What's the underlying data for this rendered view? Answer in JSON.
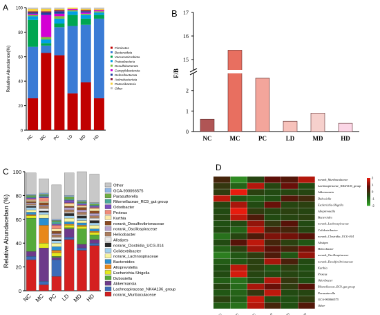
{
  "panels": [
    {
      "letter": "A",
      "chart_data": {
        "type": "bar",
        "stacked": true,
        "categories": [
          "NC",
          "MC",
          "PC",
          "LD",
          "MD",
          "HD"
        ],
        "ylabel": "Relative Abundance(%)",
        "ylim": [
          0,
          100
        ],
        "yticks": [
          0,
          20,
          40,
          60,
          80,
          100
        ],
        "legend_position": "right",
        "series": [
          {
            "name": "Firmicutes",
            "color": "#c00000",
            "values": [
              26,
              63,
              61,
              30,
              39,
              26
            ]
          },
          {
            "name": "Bacteroidota",
            "color": "#3a7bd5",
            "values": [
              42,
              6,
              23,
              55,
              47,
              65
            ]
          },
          {
            "name": "Verrucomicrobiota",
            "color": "#00a651",
            "values": [
              22,
              2,
              3,
              9,
              5,
              3
            ]
          },
          {
            "name": "Proteobacteria",
            "color": "#00a0e3",
            "values": [
              3,
              3,
              4,
              3,
              3,
              2
            ]
          },
          {
            "name": "Desulfobacterota",
            "color": "#7fbf3f",
            "values": [
              1,
              2,
              2,
              1,
              1,
              1
            ]
          },
          {
            "name": "Campylobacterota",
            "color": "#d400d4",
            "values": [
              1,
              18,
              2,
              1,
              1,
              1
            ]
          },
          {
            "name": "Deferribacterota",
            "color": "#1f3fa0",
            "values": [
              1,
              2,
              2,
              0,
              1,
              0
            ]
          },
          {
            "name": "Actinobacteriota",
            "color": "#8b1e3f",
            "values": [
              1,
              1,
              1,
              0,
              1,
              0
            ]
          },
          {
            "name": "Patescibacteria",
            "color": "#f4d03f",
            "values": [
              2,
              2,
              1,
              1,
              1,
              1
            ]
          },
          {
            "name": "Other",
            "color": "#bfbfbf",
            "values": [
              1,
              1,
              1,
              0,
              1,
              1
            ]
          }
        ]
      }
    },
    {
      "letter": "B",
      "chart_data": {
        "type": "bar",
        "categories": [
          "NC",
          "MC",
          "PC",
          "LD",
          "MD",
          "HD"
        ],
        "values": [
          0.6,
          15.4,
          2.6,
          0.5,
          0.9,
          0.4
        ],
        "colors": [
          "#b05555",
          "#e86f60",
          "#f3a59b",
          "#f7c2bb",
          "#f6d0cc",
          "#fbd6e6"
        ],
        "ylabel": "F/B",
        "yticks_lower": [
          0,
          1,
          2
        ],
        "yticks_upper": [
          15,
          16,
          17
        ],
        "axis_break": [
          2.7,
          14.5
        ]
      }
    },
    {
      "letter": "C",
      "chart_data": {
        "type": "bar",
        "stacked": true,
        "categories": [
          "NC",
          "MC",
          "PC",
          "LD",
          "MD",
          "HD"
        ],
        "ylabel": "Relative Abundaceban (%)",
        "ylim": [
          0,
          100
        ],
        "yticks": [
          0,
          20,
          40,
          60,
          80,
          100
        ],
        "legend_position": "right",
        "series": [
          {
            "name": "norank_Muribaculaceae",
            "color": "#d42020",
            "values": [
              26,
              5,
              12,
              43,
              34,
              38
            ]
          },
          {
            "name": "Lachnospiraceae_NK4A136_group",
            "color": "#3b6cb8",
            "values": [
              3,
              3,
              14,
              2,
              2,
              2
            ]
          },
          {
            "name": "Akkermansia",
            "color": "#6e3a8a",
            "values": [
              4,
              28,
              2,
              7,
              3,
              3
            ]
          },
          {
            "name": "Dubosiella",
            "color": "#55aa3a",
            "values": [
              28,
              0,
              1,
              1,
              13,
              4
            ]
          },
          {
            "name": "Escherichia-Shigella",
            "color": "#e3e81e",
            "values": [
              2,
              4,
              3,
              2,
              2,
              2
            ]
          },
          {
            "name": "Alloprevotella",
            "color": "#e8881a",
            "values": [
              1,
              15,
              2,
              1,
              1,
              1
            ]
          },
          {
            "name": "Bacteroides",
            "color": "#2b8fd1",
            "values": [
              2,
              6,
              3,
              2,
              2,
              2
            ]
          },
          {
            "name": "norank_Lachnospiraceae",
            "color": "#f7f4a0",
            "values": [
              2,
              3,
              3,
              3,
              2,
              3
            ]
          },
          {
            "name": "Colidextribacter",
            "color": "#a0d0ee",
            "values": [
              2,
              2,
              2,
              2,
              2,
              2
            ]
          },
          {
            "name": "norank_Clostridia_UCG-014",
            "color": "#2a2a2a",
            "values": [
              1,
              1,
              1,
              2,
              2,
              2
            ]
          },
          {
            "name": "Alistipes",
            "color": "#e8e8e8",
            "values": [
              1,
              2,
              2,
              1,
              1,
              2
            ]
          },
          {
            "name": "Helicobacter",
            "color": "#a97c5c",
            "values": [
              1,
              2,
              2,
              2,
              2,
              2
            ]
          },
          {
            "name": "norank_Oscillospiraceae",
            "color": "#b6a2ce",
            "values": [
              1,
              1,
              1,
              2,
              2,
              2
            ]
          },
          {
            "name": "norank_Desulfovibrionaceae",
            "color": "#8a4a22",
            "values": [
              1,
              2,
              2,
              1,
              2,
              2
            ]
          },
          {
            "name": "Kurthia",
            "color": "#fbe9a7",
            "values": [
              1,
              1,
              2,
              2,
              1,
              2
            ]
          },
          {
            "name": "Proteus",
            "color": "#f08a78",
            "values": [
              1,
              3,
              3,
              1,
              1,
              1
            ]
          },
          {
            "name": "Odoribacter",
            "color": "#7b4fbf",
            "values": [
              1,
              1,
              1,
              2,
              1,
              1
            ]
          },
          {
            "name": "Rikenellaceae_RC9_gut group",
            "color": "#4aa99a",
            "values": [
              1,
              1,
              2,
              1,
              1,
              1
            ]
          },
          {
            "name": "Parasutterella",
            "color": "#6fae44",
            "values": [
              1,
              1,
              1,
              2,
              1,
              1
            ]
          },
          {
            "name": "GCA-900066575",
            "color": "#8fb6e6",
            "values": [
              1,
              1,
              1,
              1,
              1,
              1
            ]
          },
          {
            "name": "Other",
            "color": "#c8c8c8",
            "values": [
              18,
              12,
              29,
              19,
              24,
              24
            ]
          }
        ]
      }
    },
    {
      "letter": "D",
      "chart_data": {
        "type": "heatmap",
        "columns": [
          "NC",
          "MC",
          "PC",
          "LD",
          "MD",
          "HD"
        ],
        "rows": [
          "norank_Muribaculaceae",
          "Lachnospiraceae_NK4A136_group",
          "Akkermansia",
          "Dubosiella",
          "Escherichia-Shigella",
          "Alloprevotella",
          "Bacteroides",
          "norank_Lachnospiraceae",
          "Colidextribacter",
          "norank_Clostridia_UCG-014",
          "Alistipes",
          "Helicobacter",
          "norank_Oscillospiraceae",
          "norank_Desulfovibrionaceae",
          "Kurthia",
          "Proteus",
          "Odoribacter",
          "Rikenellaceae_RC9_gut group",
          "Parasutterella",
          "GCA-900066575",
          "Other"
        ],
        "values": [
          [
            0.2,
            -1.6,
            -0.5,
            0.7,
            0.5,
            1.5
          ],
          [
            -0.2,
            -1.0,
            1.5,
            -0.5,
            0.8,
            -0.6
          ],
          [
            -0.3,
            2.0,
            -0.4,
            -0.6,
            -0.5,
            -0.5
          ],
          [
            1.6,
            -0.8,
            -0.9,
            -0.7,
            0.5,
            0.1
          ],
          [
            -0.5,
            1.4,
            -0.6,
            0.8,
            -0.5,
            -0.4
          ],
          [
            -0.6,
            2.0,
            -0.3,
            -0.5,
            -0.4,
            -0.5
          ],
          [
            -0.5,
            1.6,
            0.4,
            -0.6,
            -0.5,
            -0.4
          ],
          [
            -0.7,
            -0.6,
            1.2,
            -0.2,
            0.6,
            -0.6
          ],
          [
            -0.6,
            -1.0,
            1.6,
            0.3,
            0.2,
            -0.5
          ],
          [
            -1.2,
            -0.5,
            0.4,
            1.0,
            0.9,
            0.6
          ],
          [
            -0.6,
            0.6,
            1.6,
            0.2,
            -0.4,
            -0.8
          ],
          [
            -1.0,
            -0.4,
            1.3,
            0.6,
            0.2,
            0.9
          ],
          [
            -1.4,
            -0.8,
            -0.3,
            0.4,
            -0.8,
            1.2
          ],
          [
            -0.9,
            -0.8,
            -0.4,
            1.4,
            0.3,
            -0.6
          ],
          [
            -0.7,
            1.6,
            -0.4,
            -0.8,
            -0.4,
            -0.7
          ],
          [
            -0.6,
            1.8,
            -0.5,
            -0.6,
            -0.5,
            -0.6
          ],
          [
            -0.9,
            -1.2,
            -0.6,
            1.5,
            -0.2,
            -0.7
          ],
          [
            -0.5,
            -1.1,
            1.4,
            0.8,
            -0.3,
            0.6
          ],
          [
            -0.8,
            -1.0,
            -0.2,
            1.6,
            -0.6,
            -0.5
          ],
          [
            -0.4,
            -0.9,
            1.7,
            -0.6,
            -0.7,
            -0.3
          ],
          [
            -0.9,
            -1.2,
            1.5,
            0.2,
            -0.7,
            0.5
          ]
        ],
        "color_scale": [
          "#36a62a",
          "#1f4d12",
          "#5a0f08",
          "#e81c0e"
        ],
        "colorbar_ticks": [
          2,
          1,
          0,
          -1,
          -2
        ]
      }
    }
  ]
}
